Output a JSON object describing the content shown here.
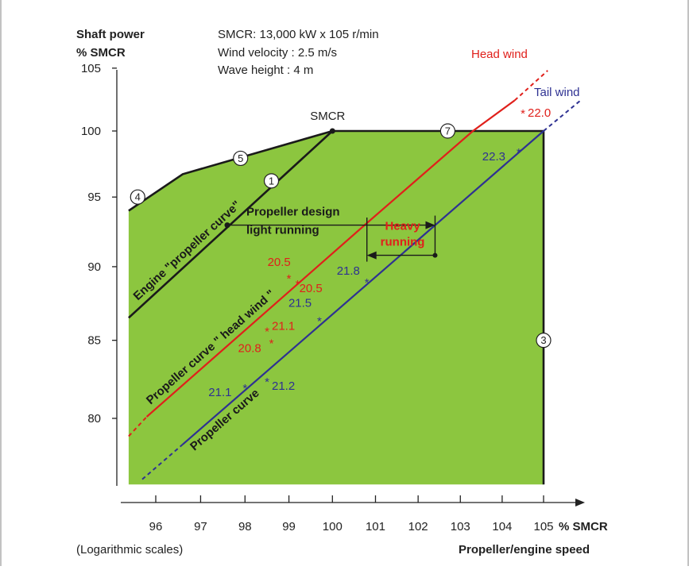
{
  "header": {
    "ylabel_line1": "Shaft power",
    "ylabel_line2": "% SMCR",
    "info_line1": "SMCR: 13,000 kW x 105 r/min",
    "info_line2": "Wind velocity :  2.5 m/s",
    "info_line3": "Wave height  :   4 m"
  },
  "footer": {
    "scale_note": "(Logarithmic scales)",
    "xlabel": "Propeller/engine speed",
    "x_unit": "% SMCR"
  },
  "colors": {
    "fill": "#8cc63f",
    "head_wind": "#e0201b",
    "tail_wind": "#2e3192",
    "outline": "#1a1a1a"
  },
  "chart_data": {
    "type": "line",
    "x_scale": "log",
    "y_scale": "log",
    "xlim": [
      95.3,
      105.3
    ],
    "ylim": [
      75.5,
      105
    ],
    "x_ticks": [
      96,
      97,
      98,
      99,
      100,
      101,
      102,
      103,
      104,
      105
    ],
    "y_ticks": [
      80,
      85,
      90,
      95,
      100,
      105
    ],
    "series": [
      {
        "name": "Propeller curve \" head wind \"",
        "color": "#e0201b",
        "points": [
          [
            95.8,
            80.1
          ],
          [
            100.8,
            93.1
          ],
          [
            103.3,
            100
          ],
          [
            104.3,
            102.4
          ]
        ],
        "dashed_extensions": [
          [
            [
              95.4,
              78.9
            ],
            [
              95.8,
              80.1
            ]
          ],
          [
            [
              104.3,
              102.4
            ],
            [
              105.1,
              104.8
            ]
          ]
        ]
      },
      {
        "name": "Propeller curve",
        "color": "#2e3192",
        "points": [
          [
            96.6,
            78.4
          ],
          [
            105,
            100
          ]
        ],
        "dashed_extensions": [
          [
            [
              95.7,
              76.3
            ],
            [
              96.6,
              78.4
            ]
          ],
          [
            [
              105,
              100
            ],
            [
              105.9,
              102.4
            ]
          ]
        ]
      },
      {
        "name": "Engine \"propeller curve\"",
        "color": "#1a1a1a",
        "points": [
          [
            95.4,
            86.5
          ],
          [
            100,
            100
          ]
        ]
      }
    ],
    "envelope": {
      "color": "#8cc63f",
      "points": [
        [
          95.4,
          94
        ],
        [
          96.6,
          96.7
        ],
        [
          100,
          100
        ],
        [
          105,
          100
        ],
        [
          105,
          76
        ],
        [
          95.4,
          76
        ]
      ]
    },
    "markers": [
      {
        "label": "SMCR",
        "x": 100,
        "y": 100
      }
    ],
    "head_wind_points": [
      {
        "value": "20.5",
        "x": 99.0,
        "y": 89.4
      },
      {
        "value": "20.5",
        "x": 99.2,
        "y": 89.0
      },
      {
        "value": "21.1",
        "x": 98.5,
        "y": 85.8
      },
      {
        "value": "20.8",
        "x": 98.6,
        "y": 85.0
      },
      {
        "value": "22.0",
        "x": 104.5,
        "y": 101.6
      }
    ],
    "tail_wind_points": [
      {
        "value": "21.8",
        "x": 100.8,
        "y": 89.1
      },
      {
        "value": "21.5",
        "x": 99.7,
        "y": 86.5
      },
      {
        "value": "21.1",
        "x": 98.0,
        "y": 82.1
      },
      {
        "value": "21.2",
        "x": 98.5,
        "y": 82.5
      },
      {
        "value": "22.3",
        "x": 104.4,
        "y": 98.6
      }
    ],
    "circled_labels": [
      {
        "label": "1",
        "x": 98.6,
        "y": 96.2
      },
      {
        "label": "3",
        "x": 105,
        "y": 85
      },
      {
        "label": "4",
        "x": 95.6,
        "y": 95
      },
      {
        "label": "5",
        "x": 97.9,
        "y": 97.9
      },
      {
        "label": "7",
        "x": 102.7,
        "y": 100
      }
    ],
    "annotations": {
      "head_wind": "Head wind",
      "tail_wind": "Tail wind",
      "propeller_design_line1": "Propeller design",
      "propeller_design_line2": "light running",
      "heavy_line1": "Heavy",
      "heavy_line2": "running",
      "engine_curve": "Engine \"propeller curve\"",
      "head_curve": "Propeller curve \" head wind \"",
      "tail_curve": "Propeller curve"
    },
    "design_arrow": {
      "from": [
        97.6,
        92.95
      ],
      "to": [
        102.4,
        92.95
      ]
    },
    "heavy_arrow": {
      "from": [
        100.8,
        90.8
      ],
      "to": [
        102.4,
        90.8
      ]
    }
  }
}
